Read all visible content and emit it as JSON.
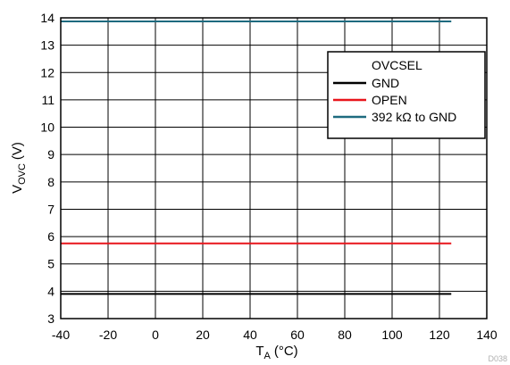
{
  "chart_data": {
    "type": "line",
    "title": "",
    "xlabel_main": "T",
    "xlabel_sub": "A",
    "xlabel_unit": "(°C)",
    "ylabel_main": "V",
    "ylabel_sub": "OVC",
    "ylabel_unit": "(V)",
    "xlim": [
      -40,
      140
    ],
    "ylim": [
      3,
      14
    ],
    "xticks": [
      -40,
      -20,
      0,
      20,
      40,
      60,
      80,
      100,
      120,
      140
    ],
    "yticks": [
      3,
      4,
      5,
      6,
      7,
      8,
      9,
      10,
      11,
      12,
      13,
      14
    ],
    "grid": true,
    "legend_title": "OVCSEL",
    "legend_position": "top-right",
    "series": [
      {
        "name": "GND",
        "color": "#000000",
        "x": [
          -40,
          125
        ],
        "y": [
          3.9,
          3.9
        ]
      },
      {
        "name": "OPEN",
        "color": "#e8151b",
        "x": [
          -40,
          125
        ],
        "y": [
          5.75,
          5.75
        ]
      },
      {
        "name": "392 kΩ to GND",
        "color": "#1e6b7f",
        "x": [
          -40,
          125
        ],
        "y": [
          13.87,
          13.87
        ]
      }
    ],
    "figure_id": "D038"
  }
}
